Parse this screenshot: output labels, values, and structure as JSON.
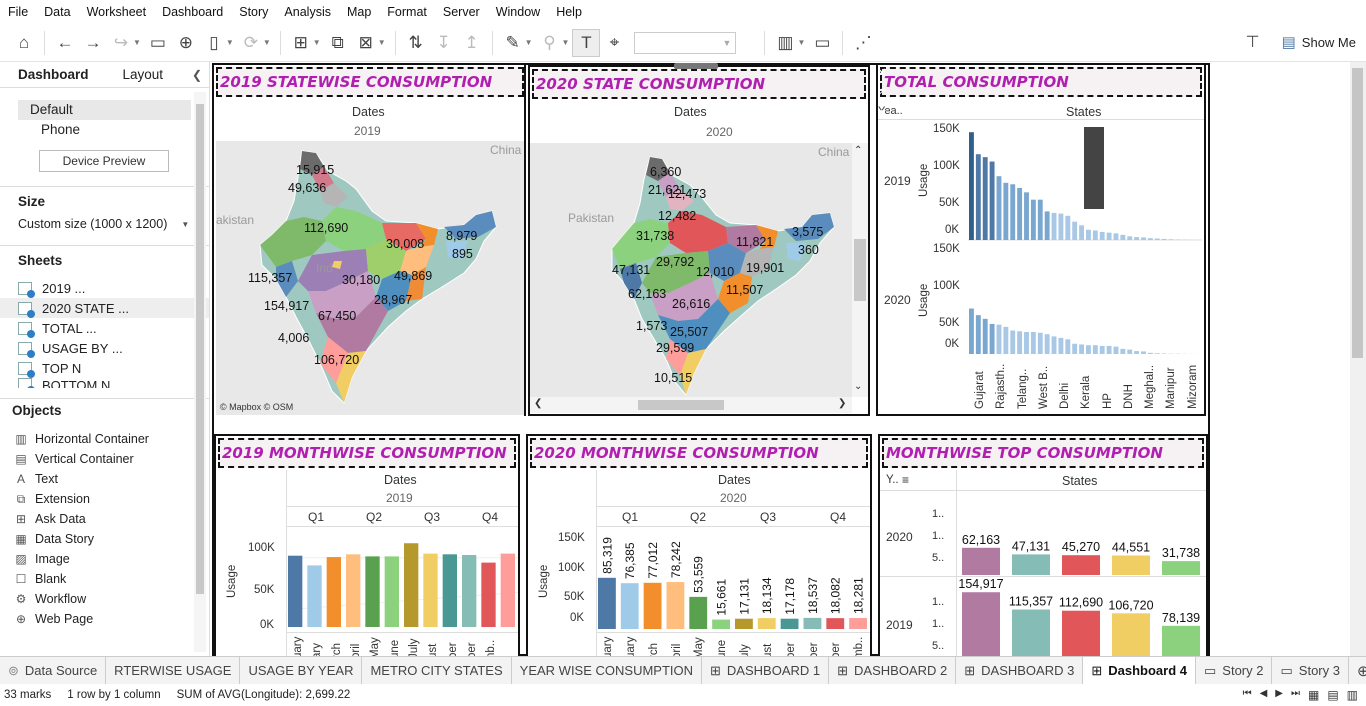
{
  "menu": [
    "File",
    "Data",
    "Worksheet",
    "Dashboard",
    "Story",
    "Analysis",
    "Map",
    "Format",
    "Server",
    "Window",
    "Help"
  ],
  "toolbar": {
    "show_me": "Show Me"
  },
  "sidebar": {
    "tab_dashboard": "Dashboard",
    "tab_layout": "Layout",
    "devices": [
      "Default",
      "Phone"
    ],
    "device_preview": "Device Preview",
    "size_label": "Size",
    "size_value": "Custom size (1000 x 1200)",
    "sheets_label": "Sheets",
    "sheets": [
      "2019 ...",
      "2020 STATE ...",
      "TOTAL ...",
      "USAGE BY ...",
      "TOP N",
      "BOTTOM N"
    ],
    "objects_label": "Objects",
    "objects": [
      {
        "icon": "horizontal-container-icon",
        "label": "Horizontal Container",
        "glyph": "▥"
      },
      {
        "icon": "vertical-container-icon",
        "label": "Vertical Container",
        "glyph": "▤"
      },
      {
        "icon": "text-icon",
        "label": "Text",
        "glyph": "A"
      },
      {
        "icon": "extension-icon",
        "label": "Extension",
        "glyph": "⧉"
      },
      {
        "icon": "ask-data-icon",
        "label": "Ask Data",
        "glyph": "⊞"
      },
      {
        "icon": "data-story-icon",
        "label": "Data Story",
        "glyph": "▦"
      },
      {
        "icon": "image-icon",
        "label": "Image",
        "glyph": "▨"
      },
      {
        "icon": "blank-icon",
        "label": "Blank",
        "glyph": "☐"
      },
      {
        "icon": "workflow-icon",
        "label": "Workflow",
        "glyph": "⚙"
      },
      {
        "icon": "web-page-icon",
        "label": "Web Page",
        "glyph": "⊕"
      }
    ]
  },
  "zones": {
    "map2019": {
      "title": "2019 STATEWISE CONSUMPTION",
      "header": "Dates",
      "year": "2019",
      "label_china": "China",
      "label_pakistan": "akistan",
      "label_india": "Ind",
      "attribution": "© Mapbox © OSM",
      "values": [
        "15,915",
        "49,636",
        "112,690",
        "30,008",
        "8,979",
        "895",
        "115,357",
        "30,180",
        "49,869",
        "154,917",
        "28,967",
        "67,450",
        "4,006",
        "106,720"
      ]
    },
    "map2020": {
      "title": "2020 STATE CONSUMPTION",
      "header": "Dates",
      "year": "2020",
      "label_china": "China",
      "label_pakistan": "Pakistan",
      "values": [
        "6,360",
        "21,621",
        "12,473",
        "12,482",
        "31,738",
        "11,821",
        "3,575",
        "360",
        "29,792",
        "47,131",
        "12,010",
        "19,901",
        "62,163",
        "11,507",
        "26,616",
        "1,573",
        "25,507",
        "29,599",
        "10,515"
      ]
    },
    "total": {
      "title": "TOTAL CONSUMPTION",
      "header_year": "Yea..",
      "header_states": "States",
      "ylabel": "Usage",
      "ticks": [
        "150K",
        "100K",
        "50K",
        "0K"
      ],
      "rows": [
        "2019",
        "2020"
      ],
      "states": [
        "Gujarat",
        "Rajasth..",
        "Telang..",
        "West B..",
        "Delhi",
        "Kerala",
        "HP",
        "DNH",
        "Meghal..",
        "Manipur",
        "Mizoram"
      ]
    },
    "month2019": {
      "title": "2019 MONTHWISE CONSUMPTION",
      "header": "Dates",
      "year": "2019",
      "quarters": [
        "Q1",
        "Q2",
        "Q3",
        "Q4"
      ],
      "ylabel": "Usage",
      "ticks": [
        "100K",
        "50K",
        "0K"
      ],
      "months": [
        "uary",
        "ary",
        "rch",
        "pril",
        "May",
        "une",
        "July",
        "ust",
        "ber",
        "ber",
        "nb.."
      ]
    },
    "month2020": {
      "title": "2020 MONTHWISE CONSUMPTION",
      "header": "Dates",
      "year": "2020",
      "quarters": [
        "Q1",
        "Q2",
        "Q3",
        "Q4"
      ],
      "ylabel": "Usage",
      "ticks": [
        "150K",
        "100K",
        "50K",
        "0K"
      ],
      "months": [
        "uary",
        "uary",
        "rch",
        "pril",
        "May",
        "une",
        "uly",
        "ust",
        "ber",
        "ber",
        "ber",
        "mb.."
      ]
    },
    "top": {
      "title": "MONTHWISE TOP CONSUMPTION",
      "header_year": "Y..",
      "header_states": "States",
      "rows": [
        "2020",
        "2019"
      ],
      "ticks": [
        "1..",
        "1..",
        "5.."
      ]
    }
  },
  "chart_data": [
    {
      "type": "bar",
      "title": "TOTAL CONSUMPTION",
      "ylabel": "Usage",
      "ylim": [
        0,
        150000
      ],
      "series": [
        {
          "name": "2019",
          "values": [
            147000,
            117000,
            113000,
            107000,
            87000,
            78000,
            76000,
            71000,
            65000,
            55000,
            55000,
            39000,
            37000,
            36000,
            33000,
            25000,
            20000,
            14000,
            13000,
            11000,
            10000,
            9000,
            7000,
            5000,
            4000,
            3500,
            2500,
            2000,
            1500,
            1000,
            700,
            400,
            200,
            100
          ]
        },
        {
          "name": "2020",
          "values": [
            62000,
            53000,
            48000,
            41000,
            40000,
            37000,
            32000,
            31000,
            30000,
            30000,
            29000,
            27000,
            24000,
            22000,
            20000,
            14000,
            13000,
            12000,
            12000,
            11000,
            11000,
            10000,
            7000,
            6000,
            4000,
            3500,
            1600,
            1000,
            700,
            400,
            360,
            200,
            100,
            50
          ]
        }
      ]
    },
    {
      "type": "bar",
      "title": "2019 MONTHWISE CONSUMPTION",
      "ylabel": "Usage",
      "ylim": [
        0,
        130000
      ],
      "categories": [
        "January",
        "February",
        "March",
        "April",
        "May",
        "June",
        "July",
        "August",
        "September",
        "October",
        "November",
        "December"
      ],
      "values": [
        103000,
        89000,
        101000,
        105000,
        102000,
        102000,
        121000,
        106000,
        105000,
        104000,
        93000,
        106000
      ]
    },
    {
      "type": "bar",
      "title": "2020 MONTHWISE CONSUMPTION",
      "ylabel": "Usage",
      "ylim": [
        0,
        160000
      ],
      "categories": [
        "January",
        "February",
        "March",
        "April",
        "May",
        "June",
        "July",
        "August",
        "September",
        "October",
        "November",
        "December"
      ],
      "values": [
        85319,
        76385,
        77012,
        78242,
        53559,
        15661,
        17131,
        18134,
        17178,
        18537,
        18082,
        18281
      ],
      "labels": [
        "85,319",
        "76,385",
        "77,012",
        "78,242",
        "53,559",
        "15,661",
        "17,131",
        "18,134",
        "17,178",
        "18,537",
        "18,082",
        "18,281"
      ]
    },
    {
      "type": "bar",
      "title": "MONTHWISE TOP CONSUMPTION",
      "series": [
        {
          "name": "2020",
          "values": [
            62163,
            47131,
            45270,
            44551,
            31738
          ],
          "labels": [
            "62,163",
            "47,131",
            "45,270",
            "44,551",
            "31,738"
          ]
        },
        {
          "name": "2019",
          "values": [
            154917,
            115357,
            112690,
            106720,
            78139
          ],
          "labels": [
            "154,917",
            "115,357",
            "112,690",
            "106,720",
            "78,139"
          ]
        }
      ]
    }
  ],
  "colors": {
    "title": "#b01fb0",
    "month": [
      "#4e79a7",
      "#a0cbe8",
      "#f28e2b",
      "#ffbe7d",
      "#59a14f",
      "#8cd17d",
      "#b6992d",
      "#f1ce63",
      "#499894",
      "#86bcb6",
      "#e15759",
      "#ff9d9a"
    ],
    "top": [
      "#b07aa1",
      "#86bcb6",
      "#e15759",
      "#f1ce63",
      "#8cd17d"
    ]
  },
  "tabs": [
    "Data Source",
    "RTERWISE USAGE",
    "USAGE  BY YEAR",
    "METRO CITY STATES",
    "YEAR WISE CONSUMPTION",
    "DASHBOARD 1",
    "DASHBOARD 2",
    "DASHBOARD 3",
    "Dashboard 4",
    "Story 2",
    "Story 3"
  ],
  "status": {
    "marks": "33 marks",
    "rows": "1 row by 1 column",
    "sum": "SUM of AVG(Longitude): 2,699.22"
  }
}
